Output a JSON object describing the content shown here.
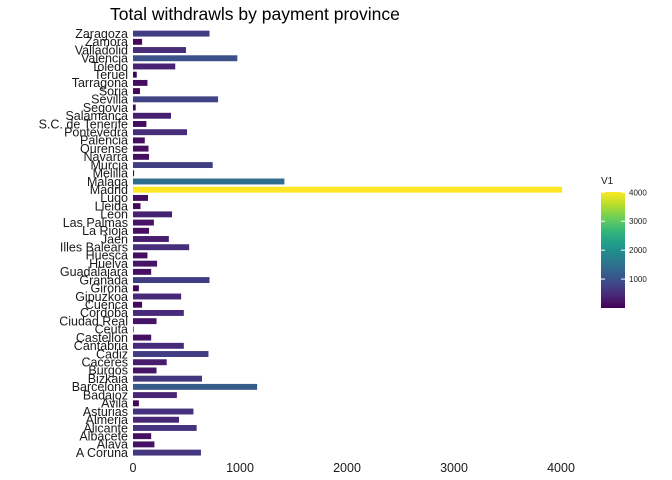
{
  "chart_data": {
    "type": "bar",
    "orientation": "horizontal",
    "title": "Total withdrawls by payment province",
    "xlabel": "",
    "ylabel": "",
    "xlim": [
      0,
      4150
    ],
    "x_ticks": [
      0,
      1000,
      2000,
      3000,
      4000
    ],
    "grid": false,
    "legend": {
      "title": "V1",
      "placement": "right",
      "type": "colorbar",
      "ticks": [
        1000,
        2000,
        3000,
        4000
      ],
      "range": [
        1,
        4010
      ],
      "colors": [
        "#440154",
        "#482878",
        "#3e4a89",
        "#31688e",
        "#26828e",
        "#1f9e89",
        "#35b779",
        "#6ece58",
        "#b5de2b",
        "#fde725"
      ]
    },
    "categories": [
      "Zaragoza",
      "Zamora",
      "Valladolid",
      "Valencia",
      "Toledo",
      "Teruel",
      "Tarragona",
      "Soria",
      "Sevilla",
      "Segovia",
      "Salamanca",
      "S.C. de Tenerife",
      "Pontevedra",
      "Palencia",
      "Ourense",
      "Navarra",
      "Murcia",
      "Melilla",
      "Malaga",
      "Madrid",
      "Lugo",
      "Lleida",
      "Leon",
      "Las Palmas",
      "La Rioja",
      "Jaen",
      "Illes Balears",
      "Huesca",
      "Huelva",
      "Guadalajara",
      "Granada",
      "Girona",
      "Gipuzkoa",
      "Cuenca",
      "Cordoba",
      "Ciudad Real",
      "Ceuta",
      "Castellon",
      "Cantabria",
      "Cadiz",
      "Caceres",
      "Burgos",
      "Bizkaia",
      "Barcelona",
      "Badajoz",
      "Avila",
      "Asturias",
      "Almeria",
      "Alicante",
      "Albacete",
      "Alava",
      "A Coruna"
    ],
    "values": [
      715,
      85,
      495,
      975,
      395,
      35,
      135,
      65,
      795,
      25,
      355,
      125,
      505,
      110,
      145,
      150,
      745,
      10,
      1415,
      4010,
      140,
      70,
      365,
      195,
      150,
      335,
      525,
      135,
      225,
      170,
      715,
      55,
      450,
      85,
      475,
      220,
      5,
      170,
      475,
      705,
      315,
      220,
      645,
      1160,
      410,
      55,
      565,
      430,
      595,
      170,
      200,
      635
    ]
  }
}
